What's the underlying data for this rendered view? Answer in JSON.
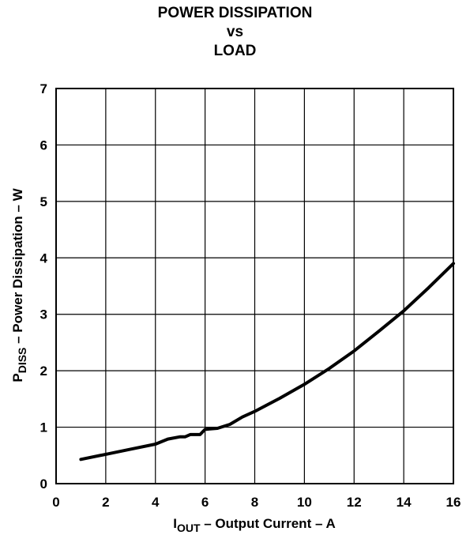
{
  "chart_data": {
    "type": "line",
    "title": [
      "POWER DISSIPATION",
      "vs",
      "LOAD"
    ],
    "xlabel": {
      "main": "I",
      "sub": "OUT",
      "rest": " – Output Current – A"
    },
    "ylabel": {
      "main": "P",
      "sub": "DISS",
      "rest": " – Power Dissipation – W"
    },
    "xlim": [
      0,
      16
    ],
    "ylim": [
      0,
      7
    ],
    "xticks": [
      "0",
      "2",
      "4",
      "6",
      "8",
      "10",
      "12",
      "14",
      "16"
    ],
    "yticks": [
      "0",
      "1",
      "2",
      "3",
      "4",
      "5",
      "6",
      "7"
    ],
    "grid": true,
    "series": [
      {
        "x": [
          1,
          2,
          3,
          4,
          4.5,
          5,
          5.2,
          5.4,
          5.6,
          5.8,
          6,
          6.2,
          6.5,
          7,
          7.5,
          8,
          9,
          10,
          11,
          12,
          13,
          14,
          15,
          16
        ],
        "y": [
          0.43,
          0.52,
          0.61,
          0.7,
          0.79,
          0.83,
          0.83,
          0.87,
          0.87,
          0.87,
          0.96,
          0.97,
          0.98,
          1.05,
          1.18,
          1.28,
          1.51,
          1.76,
          2.04,
          2.35,
          2.7,
          3.06,
          3.47,
          3.9
        ]
      }
    ]
  }
}
